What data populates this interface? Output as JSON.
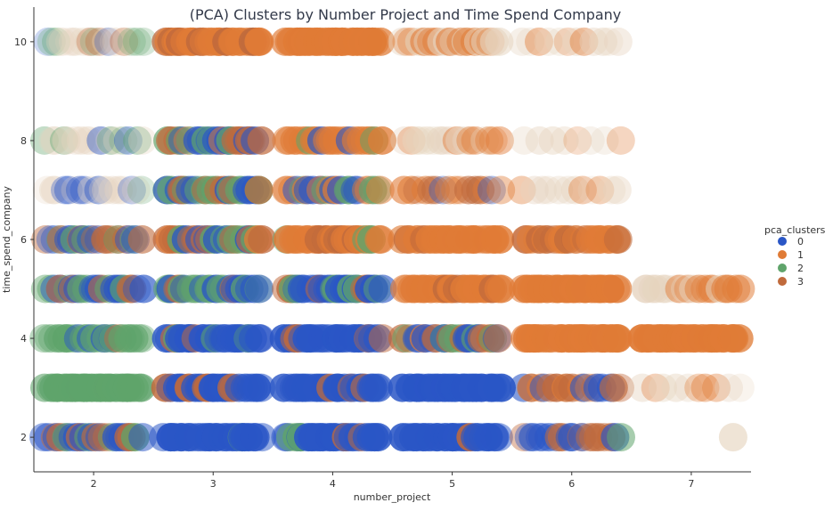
{
  "chart_data": {
    "type": "scatter",
    "title": "(PCA) Clusters by Number Project and Time Spend Company",
    "xlabel": "number_project",
    "ylabel": "time_spend_company",
    "xlim": [
      1.5,
      7.5
    ],
    "ylim": [
      1.3,
      10.7
    ],
    "x_ticks": [
      2,
      3,
      4,
      5,
      6,
      7
    ],
    "y_ticks": [
      2,
      4,
      6,
      8,
      10
    ],
    "grid": false,
    "legend": {
      "title": "pca_clusters",
      "placement": "right",
      "entries": [
        {
          "label": "0",
          "color": "#2a56c6"
        },
        {
          "label": "1",
          "color": "#e07b36"
        },
        {
          "label": "2",
          "color": "#5fa46b"
        },
        {
          "label": "3",
          "color": "#c06a3c"
        }
      ]
    },
    "jitter_x": 0.4,
    "bands": [
      {
        "x": 2,
        "y": 10,
        "mix": {
          "pale": 5,
          "0": 1,
          "2": 2,
          "3": 1
        },
        "n": 22,
        "opacity": 0.35
      },
      {
        "x": 3,
        "y": 10,
        "mix": {
          "1": 10,
          "3": 2
        },
        "n": 30,
        "opacity": 0.9
      },
      {
        "x": 4,
        "y": 10,
        "mix": {
          "1": 1
        },
        "n": 30,
        "opacity": 0.95
      },
      {
        "x": 5,
        "y": 10,
        "mix": {
          "1": 5,
          "pale": 4
        },
        "n": 22,
        "opacity": 0.6
      },
      {
        "x": 6,
        "y": 10,
        "mix": {
          "1": 3,
          "pale": 4
        },
        "n": 12,
        "opacity": 0.5
      },
      {
        "x": 2,
        "y": 8,
        "mix": {
          "2": 3,
          "pale": 4,
          "0": 1
        },
        "n": 18,
        "opacity": 0.45
      },
      {
        "x": 3,
        "y": 8,
        "mix": {
          "0": 3,
          "2": 3,
          "3": 3,
          "1": 1
        },
        "n": 26,
        "opacity": 0.75
      },
      {
        "x": 4,
        "y": 8,
        "mix": {
          "1": 6,
          "0": 1,
          "2": 1
        },
        "n": 24,
        "opacity": 0.8
      },
      {
        "x": 5,
        "y": 8,
        "mix": {
          "1": 5,
          "pale": 3
        },
        "n": 18,
        "opacity": 0.55
      },
      {
        "x": 6,
        "y": 8,
        "mix": {
          "1": 2,
          "pale": 3
        },
        "n": 8,
        "opacity": 0.45
      },
      {
        "x": 2,
        "y": 7,
        "mix": {
          "0": 3,
          "2": 2,
          "pale": 4
        },
        "n": 18,
        "opacity": 0.45
      },
      {
        "x": 3,
        "y": 7,
        "mix": {
          "0": 3,
          "2": 3,
          "3": 2
        },
        "n": 26,
        "opacity": 0.75
      },
      {
        "x": 4,
        "y": 7,
        "mix": {
          "1": 4,
          "2": 3,
          "0": 2
        },
        "n": 24,
        "opacity": 0.75
      },
      {
        "x": 5,
        "y": 7,
        "mix": {
          "1": 4,
          "3": 2,
          "0": 1
        },
        "n": 16,
        "opacity": 0.65
      },
      {
        "x": 6,
        "y": 7,
        "mix": {
          "1": 2,
          "pale": 3
        },
        "n": 12,
        "opacity": 0.45
      },
      {
        "x": 2,
        "y": 6,
        "mix": {
          "0": 3,
          "2": 4,
          "3": 2
        },
        "n": 24,
        "opacity": 0.65
      },
      {
        "x": 3,
        "y": 6,
        "mix": {
          "2": 3,
          "0": 2,
          "3": 3,
          "1": 1
        },
        "n": 28,
        "opacity": 0.8
      },
      {
        "x": 4,
        "y": 6,
        "mix": {
          "1": 6,
          "3": 2,
          "2": 1
        },
        "n": 28,
        "opacity": 0.85
      },
      {
        "x": 5,
        "y": 6,
        "mix": {
          "1": 8,
          "3": 1
        },
        "n": 28,
        "opacity": 0.85
      },
      {
        "x": 6,
        "y": 6,
        "mix": {
          "1": 6,
          "3": 1
        },
        "n": 24,
        "opacity": 0.8
      },
      {
        "x": 2,
        "y": 5,
        "mix": {
          "0": 3,
          "2": 4,
          "3": 1
        },
        "n": 24,
        "opacity": 0.7
      },
      {
        "x": 3,
        "y": 5,
        "mix": {
          "0": 3,
          "2": 4,
          "3": 1
        },
        "n": 28,
        "opacity": 0.75
      },
      {
        "x": 4,
        "y": 5,
        "mix": {
          "0": 6,
          "3": 1,
          "2": 1
        },
        "n": 28,
        "opacity": 0.85
      },
      {
        "x": 5,
        "y": 5,
        "mix": {
          "1": 8,
          "3": 1
        },
        "n": 28,
        "opacity": 0.9
      },
      {
        "x": 6,
        "y": 5,
        "mix": {
          "1": 1
        },
        "n": 28,
        "opacity": 0.95
      },
      {
        "x": 7,
        "y": 5,
        "mix": {
          "1": 5,
          "pale": 3
        },
        "n": 20,
        "opacity": 0.6
      },
      {
        "x": 2,
        "y": 4,
        "mix": {
          "2": 4,
          "0": 2,
          "3": 1
        },
        "n": 26,
        "opacity": 0.7
      },
      {
        "x": 3,
        "y": 4,
        "mix": {
          "0": 8,
          "3": 1,
          "2": 1
        },
        "n": 28,
        "opacity": 0.9
      },
      {
        "x": 4,
        "y": 4,
        "mix": {
          "0": 6,
          "3": 1
        },
        "n": 28,
        "opacity": 0.9
      },
      {
        "x": 5,
        "y": 4,
        "mix": {
          "3": 3,
          "0": 2,
          "2": 2,
          "1": 1
        },
        "n": 26,
        "opacity": 0.75
      },
      {
        "x": 6,
        "y": 4,
        "mix": {
          "1": 1
        },
        "n": 30,
        "opacity": 0.95
      },
      {
        "x": 7,
        "y": 4,
        "mix": {
          "1": 1
        },
        "n": 30,
        "opacity": 0.95
      },
      {
        "x": 2,
        "y": 3,
        "mix": {
          "2": 1
        },
        "n": 30,
        "opacity": 0.95
      },
      {
        "x": 3,
        "y": 3,
        "mix": {
          "0": 8,
          "3": 1
        },
        "n": 28,
        "opacity": 0.9
      },
      {
        "x": 4,
        "y": 3,
        "mix": {
          "0": 7,
          "3": 2
        },
        "n": 28,
        "opacity": 0.9
      },
      {
        "x": 5,
        "y": 3,
        "mix": {
          "0": 1
        },
        "n": 30,
        "opacity": 0.95
      },
      {
        "x": 6,
        "y": 3,
        "mix": {
          "3": 3,
          "0": 3,
          "1": 1
        },
        "n": 20,
        "opacity": 0.7
      },
      {
        "x": 7,
        "y": 3,
        "mix": {
          "1": 2,
          "pale": 4
        },
        "n": 10,
        "opacity": 0.45
      },
      {
        "x": 2,
        "y": 2,
        "mix": {
          "0": 4,
          "3": 3,
          "2": 1
        },
        "n": 26,
        "opacity": 0.75
      },
      {
        "x": 3,
        "y": 2,
        "mix": {
          "0": 9,
          "2": 1
        },
        "n": 28,
        "opacity": 0.9
      },
      {
        "x": 4,
        "y": 2,
        "mix": {
          "0": 8,
          "2": 1,
          "3": 1
        },
        "n": 28,
        "opacity": 0.9
      },
      {
        "x": 5,
        "y": 2,
        "mix": {
          "0": 8,
          "3": 1
        },
        "n": 28,
        "opacity": 0.9
      },
      {
        "x": 6,
        "y": 2,
        "mix": {
          "3": 3,
          "2": 2,
          "0": 2
        },
        "n": 20,
        "opacity": 0.7
      },
      {
        "x": 7.35,
        "y": 2,
        "mix": {
          "pale": 1
        },
        "n": 2,
        "opacity": 0.5
      }
    ],
    "pale_color": "#e6d4bf"
  }
}
